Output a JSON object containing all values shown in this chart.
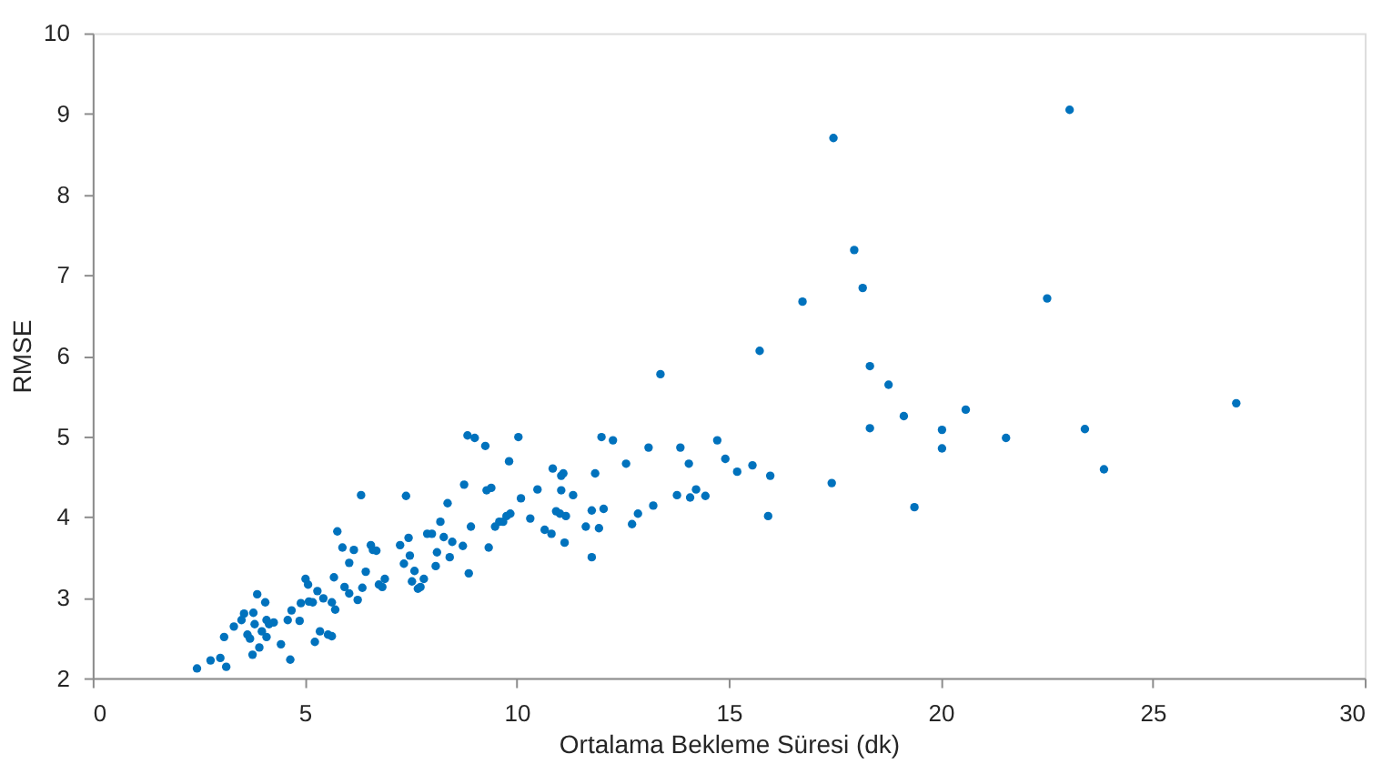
{
  "chart_data": {
    "type": "scatter",
    "xlabel": "Ortalama Bekleme Süresi (dk)",
    "ylabel": "RMSE",
    "xlim": [
      0,
      30
    ],
    "xticks": [
      0,
      5,
      10,
      15,
      20,
      25,
      30
    ],
    "ylim": [
      2,
      10
    ],
    "yticks": [
      2,
      3,
      4,
      5,
      6,
      7,
      8,
      9,
      10
    ],
    "grid": false,
    "marker": "circle",
    "series": [
      {
        "color": "#0072bd",
        "x": [
          2.46,
          2.78,
          3.01,
          3.15,
          3.1,
          3.33,
          3.51,
          3.57,
          3.65,
          3.71,
          3.79,
          3.82,
          3.77,
          3.88,
          3.93,
          3.99,
          4.07,
          4.1,
          4.1,
          4.16,
          4.27,
          4.44,
          4.6,
          4.66,
          4.69,
          4.88,
          4.91,
          5.02,
          5.08,
          5.1,
          5.19,
          5.24,
          5.3,
          5.36,
          5.44,
          5.55,
          5.64,
          5.64,
          5.69,
          5.72,
          5.77,
          5.89,
          5.94,
          6.05,
          6.05,
          6.16,
          6.25,
          6.33,
          6.36,
          6.44,
          6.56,
          6.61,
          6.69,
          6.75,
          6.83,
          6.89,
          7.25,
          7.34,
          7.39,
          7.45,
          7.48,
          7.53,
          7.59,
          7.67,
          7.73,
          7.81,
          7.89,
          8.0,
          8.09,
          8.12,
          8.2,
          8.28,
          8.37,
          8.42,
          8.48,
          8.73,
          8.76,
          8.84,
          8.87,
          8.92,
          9.01,
          9.26,
          9.29,
          9.34,
          9.4,
          9.49,
          9.59,
          9.68,
          9.76,
          9.82,
          9.85,
          10.04,
          10.1,
          10.32,
          10.49,
          10.66,
          10.82,
          10.85,
          11.05,
          11.1,
          11.05,
          10.93,
          11.02,
          11.16,
          11.33,
          11.13,
          11.77,
          11.63,
          11.77,
          11.85,
          11.94,
          12.05,
          12.0,
          12.27,
          12.58,
          12.72,
          12.86,
          13.11,
          13.22,
          13.39,
          13.78,
          13.86,
          14.06,
          14.09,
          14.23,
          14.45,
          14.73,
          14.92,
          15.2,
          15.56,
          15.73,
          15.93,
          15.98,
          16.74,
          17.47,
          17.43,
          17.96,
          18.16,
          18.33,
          18.33,
          18.77,
          19.13,
          19.38,
          20.03,
          20.03,
          20.59,
          21.54,
          22.51,
          23.04,
          23.4,
          23.85,
          26.97
        ],
        "values": [
          2.12,
          2.22,
          2.25,
          2.14,
          2.51,
          2.64,
          2.72,
          2.8,
          2.54,
          2.49,
          2.81,
          2.67,
          2.29,
          3.04,
          2.38,
          2.58,
          2.94,
          2.72,
          2.51,
          2.67,
          2.69,
          2.42,
          2.72,
          2.23,
          2.84,
          2.71,
          2.93,
          3.23,
          3.16,
          2.95,
          2.94,
          2.45,
          3.08,
          2.58,
          2.99,
          2.54,
          2.52,
          2.94,
          3.25,
          2.85,
          3.82,
          3.62,
          3.13,
          3.05,
          3.43,
          3.59,
          2.97,
          4.27,
          3.12,
          3.32,
          3.65,
          3.59,
          3.58,
          3.16,
          3.13,
          3.23,
          3.65,
          3.42,
          4.26,
          3.74,
          3.52,
          3.2,
          3.33,
          3.11,
          3.13,
          3.23,
          3.79,
          3.79,
          3.39,
          3.56,
          3.94,
          3.75,
          4.17,
          3.5,
          3.69,
          3.64,
          4.4,
          5.01,
          3.3,
          3.88,
          4.98,
          4.88,
          4.33,
          3.62,
          4.36,
          3.88,
          3.94,
          3.94,
          4.01,
          4.69,
          4.04,
          4.99,
          4.23,
          3.98,
          4.34,
          3.84,
          3.79,
          4.6,
          4.51,
          4.54,
          4.33,
          4.07,
          4.04,
          4.01,
          4.27,
          3.68,
          3.5,
          3.88,
          4.08,
          4.54,
          3.86,
          4.1,
          4.99,
          4.95,
          4.66,
          3.91,
          4.04,
          4.86,
          4.14,
          5.77,
          4.27,
          4.86,
          4.66,
          4.24,
          4.34,
          4.26,
          4.95,
          4.72,
          4.56,
          4.64,
          6.06,
          4.01,
          4.51,
          6.67,
          8.7,
          4.42,
          7.31,
          6.84,
          5.87,
          5.1,
          5.64,
          5.25,
          4.12,
          5.08,
          4.85,
          5.33,
          4.98,
          6.71,
          9.05,
          5.09,
          4.59,
          5.41
        ]
      }
    ]
  }
}
